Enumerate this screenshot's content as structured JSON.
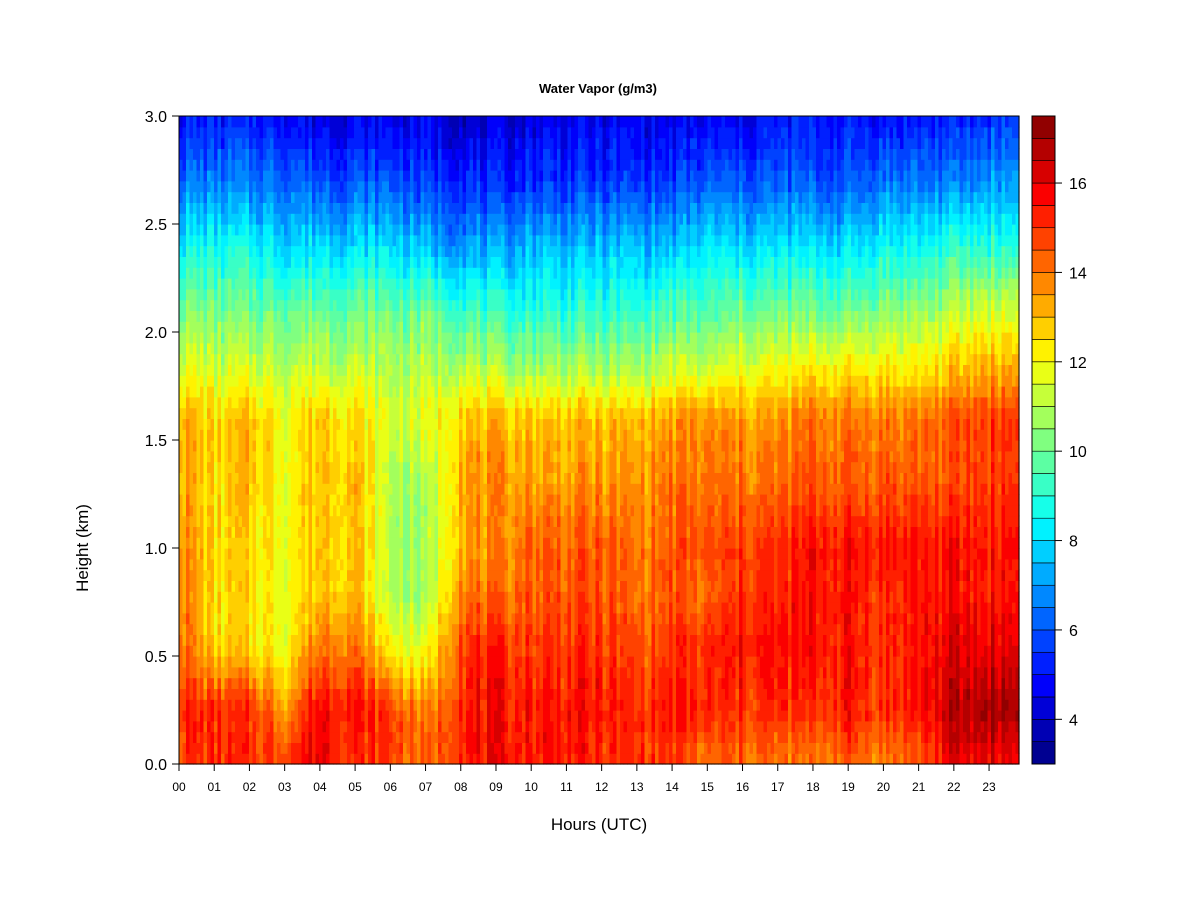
{
  "chart_data": {
    "type": "heatmap",
    "title": "Water Vapor (g/m3)",
    "xlabel": "Hours (UTC)",
    "ylabel": "Height (km)",
    "x_ticks": [
      "00",
      "01",
      "02",
      "03",
      "04",
      "05",
      "06",
      "07",
      "08",
      "09",
      "10",
      "11",
      "12",
      "13",
      "14",
      "15",
      "16",
      "17",
      "18",
      "19",
      "20",
      "21",
      "22",
      "23"
    ],
    "x_range": [
      0,
      23.85
    ],
    "y_ticks": [
      "0.0",
      "0.5",
      "1.0",
      "1.5",
      "2.0",
      "2.5",
      "3.0"
    ],
    "y_tick_values": [
      0.0,
      0.5,
      1.0,
      1.5,
      2.0,
      2.5,
      3.0
    ],
    "ylim": [
      0,
      3.0
    ],
    "colorbar": {
      "range": [
        3,
        17.5
      ],
      "level_step": 0.5,
      "ticks": [
        "4",
        "6",
        "8",
        "10",
        "12",
        "14",
        "16"
      ],
      "tick_values": [
        4,
        6,
        8,
        10,
        12,
        14,
        16
      ]
    },
    "heights_km": [
      0.05,
      0.25,
      0.55,
      0.8,
      1.0,
      1.3,
      1.6,
      1.8,
      2.1,
      2.4,
      2.7,
      3.0
    ],
    "hourly_profiles": [
      {
        "hour": 0,
        "values": [
          15.0,
          15.5,
          14.5,
          14.0,
          14.0,
          13.5,
          13.5,
          12.0,
          10.5,
          8.5,
          6.5,
          5.0
        ]
      },
      {
        "hour": 1,
        "values": [
          15.0,
          15.0,
          12.5,
          12.5,
          12.5,
          12.5,
          12.5,
          11.5,
          10.0,
          8.5,
          6.5,
          5.0
        ]
      },
      {
        "hour": 2,
        "values": [
          15.0,
          15.0,
          12.5,
          12.5,
          12.5,
          13.0,
          13.0,
          11.5,
          10.0,
          8.5,
          6.5,
          5.0
        ]
      },
      {
        "hour": 3,
        "values": [
          15.0,
          13.5,
          12.0,
          12.0,
          12.0,
          12.0,
          12.0,
          11.5,
          10.0,
          8.0,
          6.5,
          5.0
        ]
      },
      {
        "hour": 4,
        "values": [
          16.0,
          16.0,
          14.0,
          13.0,
          13.0,
          13.0,
          13.0,
          11.5,
          10.0,
          8.0,
          6.0,
          4.5
        ]
      },
      {
        "hour": 5,
        "values": [
          15.0,
          15.5,
          14.0,
          13.0,
          13.0,
          13.0,
          12.5,
          11.5,
          10.0,
          8.0,
          6.0,
          4.5
        ]
      },
      {
        "hour": 6,
        "values": [
          15.0,
          15.0,
          12.0,
          11.0,
          11.0,
          11.0,
          11.5,
          11.0,
          10.0,
          8.0,
          6.0,
          4.5
        ]
      },
      {
        "hour": 7,
        "values": [
          14.0,
          13.5,
          11.5,
          10.5,
          10.5,
          10.5,
          11.5,
          11.0,
          10.0,
          7.5,
          5.5,
          4.5
        ]
      },
      {
        "hour": 8,
        "values": [
          15.5,
          15.5,
          15.0,
          14.0,
          13.5,
          13.5,
          13.0,
          11.5,
          9.5,
          7.0,
          5.5,
          4.0
        ]
      },
      {
        "hour": 9,
        "values": [
          15.5,
          15.5,
          15.0,
          14.0,
          13.5,
          13.5,
          13.0,
          11.0,
          9.0,
          7.0,
          5.0,
          4.0
        ]
      },
      {
        "hour": 10,
        "values": [
          15.5,
          15.5,
          15.0,
          14.5,
          14.5,
          13.5,
          13.0,
          11.0,
          9.0,
          7.5,
          5.5,
          4.5
        ]
      },
      {
        "hour": 11,
        "values": [
          15.5,
          15.5,
          15.0,
          14.5,
          14.5,
          13.5,
          13.0,
          11.0,
          9.0,
          7.5,
          5.5,
          4.5
        ]
      },
      {
        "hour": 12,
        "values": [
          15.0,
          15.5,
          15.0,
          14.5,
          14.5,
          13.5,
          13.0,
          11.0,
          9.0,
          7.5,
          5.5,
          4.5
        ]
      },
      {
        "hour": 13,
        "values": [
          15.0,
          15.0,
          14.5,
          14.0,
          14.0,
          13.5,
          13.0,
          11.0,
          9.0,
          7.5,
          5.5,
          4.5
        ]
      },
      {
        "hour": 14,
        "values": [
          15.0,
          15.5,
          15.0,
          14.5,
          14.5,
          14.0,
          13.5,
          11.5,
          9.5,
          7.5,
          5.5,
          4.5
        ]
      },
      {
        "hour": 15,
        "values": [
          14.0,
          15.0,
          15.0,
          14.0,
          14.5,
          14.0,
          13.5,
          11.5,
          9.5,
          8.0,
          6.0,
          4.5
        ]
      },
      {
        "hour": 16,
        "values": [
          14.5,
          15.0,
          15.5,
          15.0,
          15.0,
          14.0,
          13.5,
          12.0,
          10.0,
          8.0,
          6.0,
          4.5
        ]
      },
      {
        "hour": 17,
        "values": [
          14.0,
          15.0,
          15.5,
          15.0,
          15.0,
          14.0,
          13.5,
          12.0,
          10.0,
          8.0,
          6.0,
          5.0
        ]
      },
      {
        "hour": 18,
        "values": [
          14.0,
          15.0,
          15.5,
          15.5,
          15.5,
          14.5,
          14.0,
          12.5,
          10.0,
          8.0,
          6.0,
          5.0
        ]
      },
      {
        "hour": 19,
        "values": [
          14.5,
          15.5,
          15.5,
          15.5,
          15.5,
          14.5,
          14.0,
          12.5,
          10.0,
          8.0,
          6.0,
          5.0
        ]
      },
      {
        "hour": 20,
        "values": [
          14.0,
          15.0,
          15.0,
          15.0,
          15.5,
          14.5,
          14.0,
          12.5,
          10.5,
          8.5,
          6.5,
          5.0
        ]
      },
      {
        "hour": 21,
        "values": [
          14.5,
          15.5,
          15.5,
          15.5,
          15.5,
          14.5,
          14.0,
          12.5,
          10.5,
          8.5,
          6.5,
          5.0
        ]
      },
      {
        "hour": 22,
        "values": [
          16.0,
          16.5,
          16.0,
          15.5,
          15.5,
          14.5,
          14.5,
          13.0,
          11.0,
          9.0,
          6.5,
          5.0
        ]
      },
      {
        "hour": 23,
        "values": [
          16.0,
          17.0,
          16.0,
          15.5,
          15.5,
          15.0,
          15.0,
          13.5,
          11.5,
          9.0,
          7.0,
          5.5
        ]
      }
    ]
  }
}
